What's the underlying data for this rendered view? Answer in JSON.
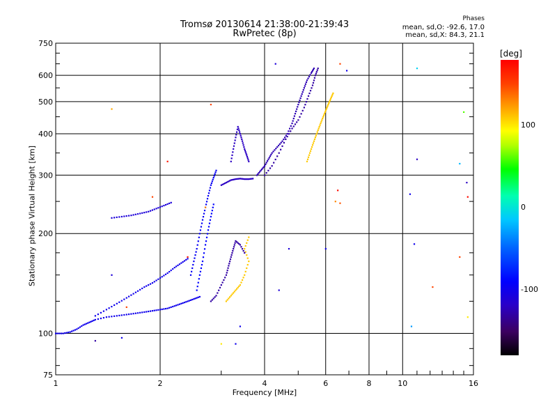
{
  "chart_data": {
    "type": "scatter",
    "title": "Tromsø 20130614 21:38:00-21:39:43",
    "subtitle": "RwPretec (8p)",
    "xlabel": "Frequency [MHz]",
    "ylabel": "Stationary phase Virtual Height [km]",
    "x_scale": "log",
    "y_scale": "log",
    "xlim": [
      1,
      16
    ],
    "ylim": [
      75,
      750
    ],
    "x_ticks": [
      1,
      2,
      4,
      6,
      8,
      10,
      16
    ],
    "x_tick_labels": [
      "1",
      "2",
      "4",
      "6",
      "8",
      "10",
      "16"
    ],
    "y_ticks": [
      75,
      100,
      200,
      300,
      400,
      500,
      600,
      750
    ],
    "y_tick_labels": [
      "75",
      "100",
      "200",
      "300",
      "400",
      "500",
      "600",
      "750"
    ],
    "grid": true,
    "phase_stats": {
      "heading": "Phases",
      "line_o": "mean, sd,O: -92.6, 17.0",
      "line_x": "mean, sd,X:  84.3, 21.1"
    },
    "colorbar": {
      "label": "[deg]",
      "range": [
        -180,
        180
      ],
      "tick_values": [
        100,
        0,
        -100
      ],
      "tick_labels": [
        "100",
        "0",
        "-100"
      ]
    },
    "traces": [
      {
        "phase": -100,
        "points": [
          [
            1.0,
            100
          ],
          [
            1.05,
            100
          ],
          [
            1.1,
            101
          ],
          [
            1.15,
            103
          ],
          [
            1.2,
            106
          ],
          [
            1.25,
            108
          ],
          [
            1.3,
            110
          ],
          [
            1.4,
            112
          ],
          [
            1.5,
            113
          ],
          [
            1.6,
            114
          ],
          [
            1.7,
            115
          ],
          [
            1.8,
            116
          ],
          [
            1.9,
            117
          ],
          [
            2.0,
            118
          ],
          [
            2.1,
            119
          ],
          [
            2.2,
            121
          ],
          [
            2.3,
            123
          ],
          [
            2.4,
            125
          ],
          [
            2.5,
            127
          ],
          [
            2.6,
            129
          ]
        ]
      },
      {
        "phase": -100,
        "points": [
          [
            1.3,
            113
          ],
          [
            1.4,
            118
          ],
          [
            1.5,
            123
          ],
          [
            1.6,
            128
          ],
          [
            1.7,
            133
          ],
          [
            1.8,
            138
          ],
          [
            1.9,
            142
          ],
          [
            2.0,
            147
          ],
          [
            2.1,
            152
          ],
          [
            2.2,
            158
          ],
          [
            2.3,
            163
          ],
          [
            2.4,
            168
          ]
        ]
      },
      {
        "phase": -110,
        "points": [
          [
            1.45,
            223
          ],
          [
            1.55,
            225
          ],
          [
            1.65,
            227
          ],
          [
            1.75,
            230
          ],
          [
            1.85,
            233
          ],
          [
            1.95,
            238
          ],
          [
            2.05,
            243
          ],
          [
            2.15,
            248
          ]
        ]
      },
      {
        "phase": -95,
        "points": [
          [
            2.45,
            150
          ],
          [
            2.5,
            165
          ],
          [
            2.55,
            180
          ],
          [
            2.6,
            200
          ],
          [
            2.65,
            220
          ],
          [
            2.7,
            240
          ],
          [
            2.75,
            260
          ],
          [
            2.8,
            280
          ],
          [
            2.85,
            295
          ],
          [
            2.9,
            310
          ]
        ]
      },
      {
        "phase": -90,
        "points": [
          [
            2.55,
            135
          ],
          [
            2.6,
            150
          ],
          [
            2.65,
            165
          ],
          [
            2.7,
            185
          ],
          [
            2.75,
            205
          ],
          [
            2.8,
            225
          ],
          [
            2.85,
            245
          ]
        ]
      },
      {
        "phase": -120,
        "points": [
          [
            3.0,
            280
          ],
          [
            3.1,
            285
          ],
          [
            3.2,
            290
          ],
          [
            3.3,
            292
          ],
          [
            3.4,
            293
          ],
          [
            3.5,
            292
          ],
          [
            3.6,
            292
          ],
          [
            3.7,
            293
          ]
        ]
      },
      {
        "phase": -120,
        "points": [
          [
            3.2,
            330
          ],
          [
            3.25,
            360
          ],
          [
            3.3,
            390
          ],
          [
            3.35,
            420
          ],
          [
            3.4,
            400
          ],
          [
            3.45,
            380
          ],
          [
            3.5,
            360
          ],
          [
            3.55,
            345
          ],
          [
            3.6,
            330
          ]
        ]
      },
      {
        "phase": -125,
        "points": [
          [
            3.8,
            300
          ],
          [
            3.9,
            310
          ],
          [
            4.0,
            320
          ],
          [
            4.1,
            335
          ],
          [
            4.2,
            350
          ],
          [
            4.35,
            365
          ],
          [
            4.5,
            380
          ],
          [
            4.65,
            400
          ],
          [
            4.8,
            430
          ],
          [
            4.9,
            460
          ],
          [
            5.0,
            490
          ],
          [
            5.1,
            520
          ],
          [
            5.2,
            550
          ],
          [
            5.3,
            580
          ],
          [
            5.45,
            610
          ],
          [
            5.55,
            630
          ]
        ]
      },
      {
        "phase": -130,
        "points": [
          [
            4.0,
            300
          ],
          [
            4.2,
            320
          ],
          [
            4.4,
            350
          ],
          [
            4.6,
            385
          ],
          [
            4.8,
            415
          ],
          [
            5.0,
            440
          ],
          [
            5.2,
            480
          ],
          [
            5.35,
            520
          ],
          [
            5.5,
            560
          ],
          [
            5.6,
            600
          ],
          [
            5.7,
            630
          ]
        ]
      },
      {
        "phase": 110,
        "points": [
          [
            5.3,
            330
          ],
          [
            5.4,
            350
          ],
          [
            5.5,
            370
          ],
          [
            5.6,
            390
          ],
          [
            5.7,
            410
          ],
          [
            5.8,
            430
          ],
          [
            5.9,
            450
          ],
          [
            6.0,
            470
          ],
          [
            6.1,
            490
          ],
          [
            6.2,
            510
          ],
          [
            6.3,
            530
          ]
        ]
      },
      {
        "phase": 110,
        "points": [
          [
            3.1,
            125
          ],
          [
            3.2,
            130
          ],
          [
            3.3,
            135
          ],
          [
            3.4,
            140
          ],
          [
            3.5,
            150
          ],
          [
            3.6,
            165
          ],
          [
            3.5,
            180
          ],
          [
            3.6,
            195
          ]
        ]
      },
      {
        "phase": -130,
        "points": [
          [
            2.8,
            125
          ],
          [
            2.9,
            130
          ],
          [
            3.0,
            140
          ],
          [
            3.1,
            150
          ],
          [
            3.15,
            160
          ],
          [
            3.2,
            170
          ],
          [
            3.25,
            180
          ],
          [
            3.3,
            190
          ],
          [
            3.4,
            185
          ],
          [
            3.5,
            175
          ]
        ]
      }
    ],
    "isolated_points": [
      {
        "x": 1.45,
        "y": 475,
        "phase": 120
      },
      {
        "x": 2.8,
        "y": 490,
        "phase": 150
      },
      {
        "x": 4.3,
        "y": 650,
        "phase": -110
      },
      {
        "x": 6.6,
        "y": 650,
        "phase": 150
      },
      {
        "x": 6.9,
        "y": 620,
        "phase": -100
      },
      {
        "x": 11.0,
        "y": 630,
        "phase": -10
      },
      {
        "x": 15.0,
        "y": 465,
        "phase": 60
      },
      {
        "x": 11.0,
        "y": 335,
        "phase": -120
      },
      {
        "x": 14.6,
        "y": 325,
        "phase": -20
      },
      {
        "x": 15.3,
        "y": 285,
        "phase": -120
      },
      {
        "x": 15.4,
        "y": 258,
        "phase": 175
      },
      {
        "x": 10.5,
        "y": 263,
        "phase": -100
      },
      {
        "x": 6.5,
        "y": 270,
        "phase": 175
      },
      {
        "x": 6.4,
        "y": 250,
        "phase": 130
      },
      {
        "x": 6.6,
        "y": 247,
        "phase": 145
      },
      {
        "x": 6.0,
        "y": 180,
        "phase": -100
      },
      {
        "x": 10.8,
        "y": 186,
        "phase": -100
      },
      {
        "x": 12.2,
        "y": 138,
        "phase": 150
      },
      {
        "x": 14.6,
        "y": 170,
        "phase": 150
      },
      {
        "x": 15.4,
        "y": 112,
        "phase": 100
      },
      {
        "x": 10.6,
        "y": 105,
        "phase": -30
      },
      {
        "x": 4.7,
        "y": 180,
        "phase": -110
      },
      {
        "x": 4.4,
        "y": 135,
        "phase": -110
      },
      {
        "x": 1.45,
        "y": 150,
        "phase": -110
      },
      {
        "x": 1.0,
        "y": 100,
        "phase": -100
      },
      {
        "x": 1.3,
        "y": 95,
        "phase": -130
      },
      {
        "x": 1.55,
        "y": 97,
        "phase": -100
      },
      {
        "x": 3.0,
        "y": 93,
        "phase": 100
      },
      {
        "x": 2.4,
        "y": 170,
        "phase": 170
      },
      {
        "x": 2.1,
        "y": 330,
        "phase": 170
      },
      {
        "x": 2.7,
        "y": 240,
        "phase": 130
      },
      {
        "x": 1.9,
        "y": 258,
        "phase": 150
      },
      {
        "x": 3.3,
        "y": 93,
        "phase": -100
      },
      {
        "x": 3.4,
        "y": 105,
        "phase": -100
      },
      {
        "x": 1.6,
        "y": 120,
        "phase": 150
      }
    ]
  }
}
